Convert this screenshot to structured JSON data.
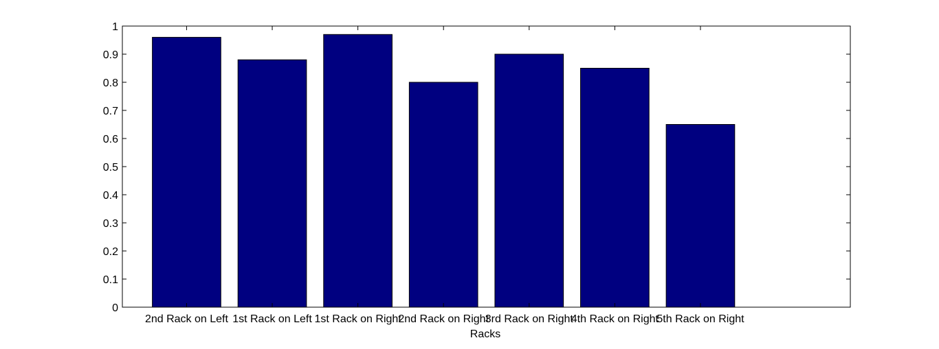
{
  "chart_data": {
    "type": "bar",
    "title": "",
    "xlabel": "Racks",
    "ylabel": "",
    "categories": [
      "2nd Rack on Left",
      "1st Rack on Left",
      "1st Rack on Right",
      "2nd Rack on Right",
      "3rd Rack on Right",
      "4th Rack on Right",
      "5th Rack on Right"
    ],
    "values": [
      0.96,
      0.88,
      0.97,
      0.8,
      0.9,
      0.85,
      0.65
    ],
    "ylim": [
      0,
      1
    ],
    "yticks": [
      "0",
      "0.1",
      "0.2",
      "0.3",
      "0.4",
      "0.5",
      "0.6",
      "0.7",
      "0.8",
      "0.9",
      "1"
    ],
    "grid": false,
    "bar_color": "#000080",
    "edge_color": "#000000"
  }
}
